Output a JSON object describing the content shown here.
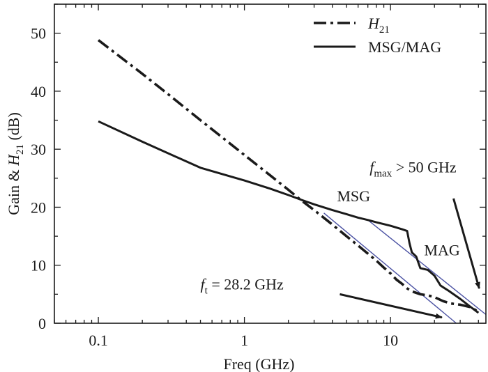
{
  "chart_data": {
    "type": "line",
    "xscale": "log",
    "xlim": [
      0.05,
      45
    ],
    "ylim": [
      0,
      55
    ],
    "xlabel": "Freq (GHz)",
    "ylabel": {
      "main": "Gain & H",
      "sub": "21",
      "suffix": " (dB)"
    },
    "xticks": [
      {
        "value": 0.1,
        "label": "0.1"
      },
      {
        "value": 1,
        "label": "1"
      },
      {
        "value": 10,
        "label": "10"
      }
    ],
    "yticks": [
      0,
      10,
      20,
      30,
      40,
      50
    ],
    "legend": {
      "position": "top-right",
      "entries": [
        {
          "series": "H21",
          "label_main": "H",
          "label_sub": "21",
          "style": "dashdot"
        },
        {
          "series": "MSG/MAG",
          "label_main": "MSG/MAG",
          "label_sub": "",
          "style": "solid"
        }
      ]
    },
    "series": [
      {
        "name": "H21",
        "style": "dashdot",
        "color": "#1a1a1a",
        "points": [
          [
            0.1,
            48.8
          ],
          [
            0.15,
            45.4
          ],
          [
            0.2,
            43.0
          ],
          [
            0.3,
            39.5
          ],
          [
            0.5,
            35.0
          ],
          [
            0.7,
            32.1
          ],
          [
            1.0,
            29.0
          ],
          [
            1.5,
            25.5
          ],
          [
            2.0,
            23.0
          ],
          [
            2.5,
            21.0
          ],
          [
            3.0,
            19.5
          ],
          [
            4.0,
            17.0
          ],
          [
            5.0,
            15.0
          ],
          [
            6.0,
            13.4
          ],
          [
            7.0,
            12.0
          ],
          [
            8.0,
            10.8
          ],
          [
            9.0,
            9.6
          ],
          [
            10.0,
            8.6
          ],
          [
            11.0,
            7.5
          ],
          [
            12.0,
            6.8
          ],
          [
            13.0,
            6.0
          ],
          [
            14.0,
            5.5
          ],
          [
            16.0,
            5.0
          ],
          [
            18.0,
            4.8
          ],
          [
            20.0,
            4.5
          ],
          [
            23.0,
            3.8
          ],
          [
            26.0,
            3.4
          ],
          [
            30.0,
            3.2
          ],
          [
            35.0,
            2.8
          ],
          [
            40.0,
            2.0
          ]
        ]
      },
      {
        "name": "MSG/MAG",
        "style": "solid",
        "color": "#1a1a1a",
        "points": [
          [
            0.1,
            34.8
          ],
          [
            0.2,
            31.3
          ],
          [
            0.5,
            26.8
          ],
          [
            1.0,
            24.6
          ],
          [
            1.5,
            23.2
          ],
          [
            2.0,
            22.1
          ],
          [
            2.5,
            21.2
          ],
          [
            3.0,
            20.5
          ],
          [
            4.0,
            19.5
          ],
          [
            5.0,
            18.8
          ],
          [
            6.0,
            18.2
          ],
          [
            7.0,
            17.8
          ],
          [
            8.0,
            17.4
          ],
          [
            10.0,
            16.8
          ],
          [
            12.0,
            16.2
          ],
          [
            13.0,
            15.9
          ],
          [
            13.5,
            13.8
          ],
          [
            14.0,
            12.2
          ],
          [
            15.0,
            11.5
          ],
          [
            16.0,
            9.5
          ],
          [
            18.0,
            9.2
          ],
          [
            20.0,
            8.2
          ],
          [
            22.0,
            6.5
          ],
          [
            25.0,
            5.6
          ],
          [
            30.0,
            4.2
          ],
          [
            35.0,
            2.9
          ],
          [
            40.0,
            1.8
          ]
        ]
      }
    ],
    "fit_lines": [
      {
        "color": "#4b52a3",
        "points": [
          [
            3.5,
            19.0
          ],
          [
            28.2,
            0
          ]
        ]
      },
      {
        "color": "#4b52a3",
        "points": [
          [
            7.0,
            17.8
          ],
          [
            45.0,
            1.5
          ]
        ]
      }
    ],
    "annotations": [
      {
        "id": "msg",
        "text": "MSG",
        "at": [
          4.3,
          21.0
        ]
      },
      {
        "id": "mag",
        "text": "MAG",
        "at": [
          17.0,
          11.7
        ]
      },
      {
        "id": "ft",
        "main": "f",
        "sub": "t",
        "rest": " = 28.2 GHz",
        "at": [
          0.5,
          5.8
        ]
      },
      {
        "id": "fmax",
        "main": "f",
        "sub": "max",
        "rest": " > 50 GHz",
        "at": [
          7.2,
          26.0
        ]
      }
    ],
    "arrows": [
      {
        "id": "ft-arrow",
        "from": [
          4.5,
          5.0
        ],
        "to": [
          22.5,
          1.0
        ]
      },
      {
        "id": "fmax-arrow",
        "from": [
          27.0,
          21.5
        ],
        "to": [
          40.5,
          6.0
        ]
      }
    ]
  }
}
